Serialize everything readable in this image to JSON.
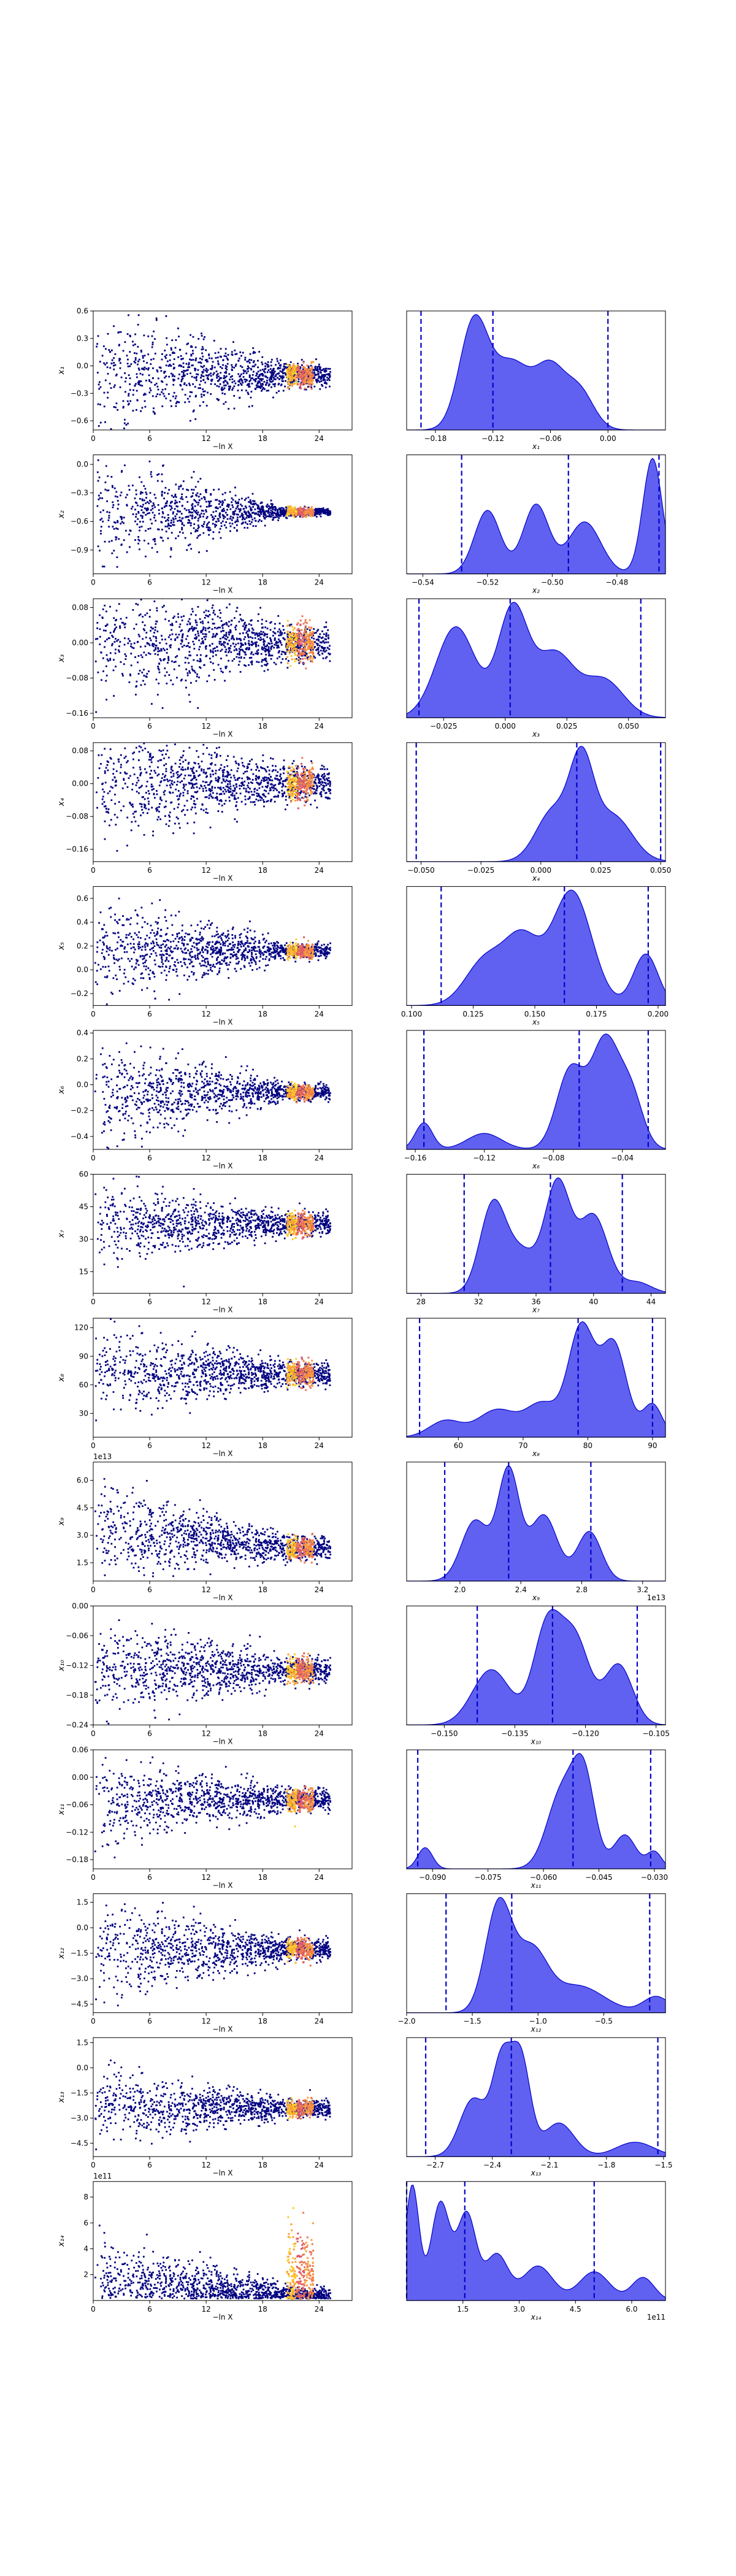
{
  "chart_data": {
    "type": "scatter",
    "description_layout": "grid of 14 rows; left: scatter vs -ln X, right: posterior density with quantile lines",
    "scatter_x_label": "−ln X",
    "scatter_xlim": [
      0,
      27.5
    ],
    "scatter_x_ticks": [
      0,
      6,
      12,
      18,
      24
    ],
    "colors": {
      "scatter_low": "#000080",
      "density_fill": "#5050f0",
      "density_line": "#0000cc",
      "quantile_line": "#0000cc"
    },
    "rows": [
      {
        "param": "x₁",
        "y_ticks": [
          -0.6,
          -0.3,
          0.0,
          0.3,
          0.6
        ],
        "ylim": [
          -0.7,
          0.6
        ],
        "y_mean": -0.1,
        "y_spread0": 0.35,
        "y_spread_end": 0.06,
        "y_tilt": 0.0,
        "kde_xlim": [
          -0.21,
          0.06
        ],
        "kde_ticks": [
          -0.18,
          -0.12,
          -0.06,
          0.0
        ],
        "kde_xlabel": "x₁",
        "kde_exp": "",
        "quantiles": [
          -0.195,
          -0.12,
          0.0
        ],
        "peaks": [
          [
            -0.14,
            0.95,
            0.015
          ],
          [
            -0.1,
            0.6,
            0.02
          ],
          [
            -0.06,
            0.5,
            0.015
          ],
          [
            -0.03,
            0.35,
            0.015
          ]
        ]
      },
      {
        "param": "x₂",
        "y_ticks": [
          -0.9,
          -0.6,
          -0.3,
          0.0
        ],
        "ylim": [
          -1.15,
          0.1
        ],
        "y_mean": -0.5,
        "y_spread0": 0.28,
        "y_spread_end": 0.02,
        "y_tilt": 0.0,
        "kde_xlim": [
          -0.545,
          -0.465
        ],
        "kde_ticks": [
          -0.54,
          -0.52,
          -0.5,
          -0.48
        ],
        "kde_xlabel": "x₂",
        "kde_exp": "",
        "quantiles": [
          -0.528,
          -0.495,
          -0.467
        ],
        "peaks": [
          [
            -0.52,
            0.55,
            0.004
          ],
          [
            -0.505,
            0.6,
            0.004
          ],
          [
            -0.49,
            0.45,
            0.005
          ],
          [
            -0.469,
            1.0,
            0.003
          ]
        ]
      },
      {
        "param": "x₃",
        "y_ticks": [
          -0.16,
          -0.08,
          0.0,
          0.08
        ],
        "ylim": [
          -0.17,
          0.1
        ],
        "y_mean": 0.0,
        "y_spread0": 0.07,
        "y_spread_end": 0.02,
        "y_tilt": 0.0,
        "kde_xlim": [
          -0.04,
          0.065
        ],
        "kde_ticks": [
          -0.025,
          0.0,
          0.025,
          0.05
        ],
        "kde_xlabel": "x₃",
        "kde_exp": "",
        "quantiles": [
          -0.035,
          0.002,
          0.055
        ],
        "peaks": [
          [
            -0.02,
            0.85,
            0.008
          ],
          [
            0.003,
            1.0,
            0.006
          ],
          [
            0.02,
            0.6,
            0.008
          ],
          [
            0.04,
            0.35,
            0.008
          ]
        ]
      },
      {
        "param": "x₄",
        "y_ticks": [
          -0.16,
          -0.08,
          0.0,
          0.08
        ],
        "ylim": [
          -0.19,
          0.1
        ],
        "y_mean": 0.0,
        "y_spread0": 0.07,
        "y_spread_end": 0.02,
        "y_tilt": 0.0,
        "kde_xlim": [
          -0.056,
          0.052
        ],
        "kde_ticks": [
          -0.05,
          -0.025,
          0.0,
          0.025,
          0.05
        ],
        "kde_xlabel": "x₄",
        "kde_exp": "",
        "quantiles": [
          -0.052,
          0.015,
          0.05
        ],
        "peaks": [
          [
            0.005,
            0.55,
            0.007
          ],
          [
            0.017,
            1.0,
            0.005
          ],
          [
            0.03,
            0.5,
            0.008
          ]
        ]
      },
      {
        "param": "x₅",
        "y_ticks": [
          -0.2,
          0.0,
          0.2,
          0.4,
          0.6
        ],
        "ylim": [
          -0.3,
          0.7
        ],
        "y_mean": 0.16,
        "y_spread0": 0.22,
        "y_spread_end": 0.03,
        "y_tilt": 0.0,
        "kde_xlim": [
          0.098,
          0.203
        ],
        "kde_ticks": [
          0.1,
          0.125,
          0.15,
          0.175,
          0.2
        ],
        "kde_xlabel": "x₅",
        "kde_exp": "",
        "quantiles": [
          0.112,
          0.162,
          0.196
        ],
        "peaks": [
          [
            0.13,
            0.4,
            0.008
          ],
          [
            0.145,
            0.55,
            0.007
          ],
          [
            0.165,
            1.0,
            0.008
          ],
          [
            0.195,
            0.45,
            0.005
          ]
        ]
      },
      {
        "param": "x₆",
        "y_ticks": [
          -0.4,
          -0.2,
          0.0,
          0.2,
          0.4
        ],
        "ylim": [
          -0.5,
          0.42
        ],
        "y_mean": -0.06,
        "y_spread0": 0.2,
        "y_spread_end": 0.03,
        "y_tilt": 0.0,
        "kde_xlim": [
          -0.165,
          -0.015
        ],
        "kde_ticks": [
          -0.16,
          -0.12,
          -0.08,
          -0.04
        ],
        "kde_xlabel": "x₆",
        "kde_exp": "",
        "quantiles": [
          -0.155,
          -0.065,
          -0.025
        ],
        "peaks": [
          [
            -0.155,
            0.25,
            0.005
          ],
          [
            -0.12,
            0.15,
            0.01
          ],
          [
            -0.07,
            0.75,
            0.008
          ],
          [
            -0.05,
            1.0,
            0.008
          ],
          [
            -0.035,
            0.5,
            0.007
          ]
        ]
      },
      {
        "param": "x₇",
        "y_ticks": [
          15,
          30,
          45,
          60
        ],
        "ylim": [
          5,
          60
        ],
        "y_mean": 37,
        "y_spread0": 9,
        "y_spread_end": 2.5,
        "y_tilt": 0.0,
        "kde_xlim": [
          27,
          45
        ],
        "kde_ticks": [
          28,
          32,
          36,
          40,
          44
        ],
        "kde_xlabel": "x₇",
        "kde_exp": "",
        "quantiles": [
          31,
          37,
          42
        ],
        "peaks": [
          [
            33,
            0.8,
            0.9
          ],
          [
            35,
            0.35,
            1.0
          ],
          [
            37.5,
            1.0,
            0.9
          ],
          [
            40,
            0.7,
            1.0
          ],
          [
            43,
            0.1,
            1.0
          ]
        ]
      },
      {
        "param": "x₈",
        "y_ticks": [
          30,
          60,
          90,
          120
        ],
        "ylim": [
          5,
          130
        ],
        "y_mean": 72,
        "y_spread0": 22,
        "y_spread_end": 6,
        "y_tilt": 0.0,
        "kde_xlim": [
          52,
          92
        ],
        "kde_ticks": [
          60,
          70,
          80,
          90
        ],
        "kde_xlabel": "x₈",
        "kde_exp": "",
        "quantiles": [
          54,
          78.5,
          90
        ],
        "peaks": [
          [
            58,
            0.15,
            2.5
          ],
          [
            66,
            0.25,
            3.0
          ],
          [
            73,
            0.3,
            2.5
          ],
          [
            79,
            1.0,
            2.0
          ],
          [
            84,
            0.85,
            2.0
          ],
          [
            90,
            0.3,
            1.5
          ]
        ]
      },
      {
        "param": "x₉",
        "y_ticks": [
          1.5,
          3.0,
          4.5,
          6.0
        ],
        "ylim": [
          0.5,
          7.0
        ],
        "y_mean": 2.3,
        "y_spread0": 1.3,
        "y_spread_end": 0.3,
        "y_tilt": 1.8,
        "y_exp_label": "1e13",
        "kde_xlim": [
          1.65,
          3.35
        ],
        "kde_ticks": [
          2.0,
          2.4,
          2.8,
          3.2
        ],
        "kde_xlabel": "x₉",
        "kde_exp": "1e13",
        "quantiles": [
          1.9,
          2.32,
          2.86
        ],
        "peaks": [
          [
            2.1,
            0.55,
            0.09
          ],
          [
            2.32,
            1.0,
            0.07
          ],
          [
            2.55,
            0.6,
            0.09
          ],
          [
            2.85,
            0.45,
            0.08
          ]
        ]
      },
      {
        "param": "x₁₀",
        "y_ticks": [
          -0.24,
          -0.18,
          -0.12,
          -0.06,
          0.0
        ],
        "ylim": [
          -0.24,
          0.0
        ],
        "y_mean": -0.13,
        "y_spread0": 0.05,
        "y_spread_end": 0.012,
        "y_tilt": 0.0,
        "kde_xlim": [
          -0.158,
          -0.103
        ],
        "kde_ticks": [
          -0.15,
          -0.135,
          -0.12,
          -0.105
        ],
        "kde_xlabel": "x₁₀",
        "kde_exp": "",
        "quantiles": [
          -0.143,
          -0.127,
          -0.109
        ],
        "peaks": [
          [
            -0.14,
            0.55,
            0.004
          ],
          [
            -0.128,
            1.0,
            0.003
          ],
          [
            -0.122,
            0.8,
            0.003
          ],
          [
            -0.113,
            0.6,
            0.003
          ]
        ]
      },
      {
        "param": "x₁₁",
        "y_ticks": [
          -0.18,
          -0.12,
          -0.06,
          0.0,
          0.06
        ],
        "ylim": [
          -0.2,
          0.06
        ],
        "y_mean": -0.05,
        "y_spread0": 0.045,
        "y_spread_end": 0.012,
        "y_tilt": 0.0,
        "kde_xlim": [
          -0.097,
          -0.027
        ],
        "kde_ticks": [
          -0.09,
          -0.075,
          -0.06,
          -0.045,
          -0.03
        ],
        "kde_xlabel": "x₁₁",
        "kde_exp": "",
        "quantiles": [
          -0.094,
          -0.052,
          -0.031
        ],
        "peaks": [
          [
            -0.092,
            0.25,
            0.002
          ],
          [
            -0.055,
            0.9,
            0.004
          ],
          [
            -0.049,
            1.0,
            0.003
          ],
          [
            -0.038,
            0.4,
            0.003
          ],
          [
            -0.03,
            0.2,
            0.002
          ]
        ]
      },
      {
        "param": "x₁₂",
        "y_ticks": [
          -4.5,
          -3.0,
          -1.5,
          0.0,
          1.5
        ],
        "ylim": [
          -5.0,
          2.0
        ],
        "y_mean": -1.3,
        "y_spread0": 1.5,
        "y_spread_end": 0.3,
        "y_tilt": 0.0,
        "kde_xlim": [
          -2.0,
          -0.03
        ],
        "kde_ticks": [
          -2.0,
          -1.5,
          -1.0,
          -0.5
        ],
        "kde_xlabel": "x₁₂",
        "kde_exp": "",
        "quantiles": [
          -1.7,
          -1.2,
          -0.15
        ],
        "peaks": [
          [
            -1.3,
            1.0,
            0.1
          ],
          [
            -1.05,
            0.55,
            0.12
          ],
          [
            -0.7,
            0.25,
            0.2
          ],
          [
            -0.1,
            0.15,
            0.1
          ]
        ]
      },
      {
        "param": "x₁₃",
        "y_ticks": [
          -4.5,
          -3.0,
          -1.5,
          0.0,
          1.5
        ],
        "ylim": [
          -5.3,
          1.8
        ],
        "y_mean": -2.4,
        "y_spread0": 1.1,
        "y_spread_end": 0.25,
        "y_tilt": 0.0,
        "kde_xlim": [
          -2.85,
          -1.49
        ],
        "kde_ticks": [
          -2.7,
          -2.4,
          -2.1,
          -1.8,
          -1.5
        ],
        "kde_xlabel": "x₁₃",
        "kde_exp": "",
        "quantiles": [
          -2.75,
          -2.3,
          -1.53
        ],
        "peaks": [
          [
            -2.5,
            0.6,
            0.07
          ],
          [
            -2.35,
            0.95,
            0.05
          ],
          [
            -2.25,
            1.0,
            0.05
          ],
          [
            -2.05,
            0.35,
            0.08
          ],
          [
            -1.65,
            0.15,
            0.1
          ]
        ]
      },
      {
        "param": "x₁₄",
        "y_ticks": [
          2,
          4,
          6,
          8
        ],
        "ylim": [
          0.0,
          9.2
        ],
        "y_mean": 0.6,
        "y_spread0": 2.8,
        "y_spread_end": 0.6,
        "y_tilt": 0.0,
        "y_exp_label": "1e11",
        "skewed": true,
        "kde_xlim": [
          0.0,
          6.9
        ],
        "kde_ticks": [
          1.5,
          3.0,
          4.5,
          6.0
        ],
        "kde_xlabel": "x₁₄",
        "kde_exp": "1e11",
        "quantiles": [
          0.0,
          1.55,
          5.0
        ],
        "peaks": [
          [
            0.15,
            1.0,
            0.18
          ],
          [
            0.9,
            0.85,
            0.25
          ],
          [
            1.6,
            0.75,
            0.25
          ],
          [
            2.4,
            0.4,
            0.3
          ],
          [
            3.5,
            0.3,
            0.4
          ],
          [
            5.0,
            0.25,
            0.4
          ],
          [
            6.3,
            0.2,
            0.3
          ]
        ]
      }
    ]
  }
}
